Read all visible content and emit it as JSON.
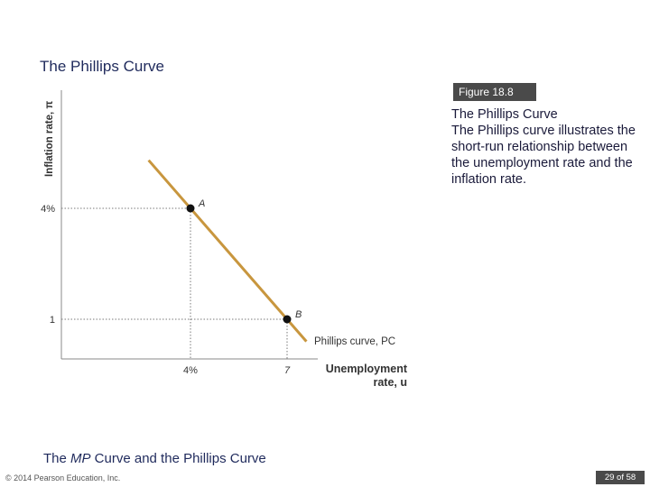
{
  "slide": {
    "title": "The Phillips Curve",
    "figure_label": "Figure 18.8",
    "caption_title": "The Phillips Curve",
    "caption_text": "The Phillips curve illustrates the short-run relationship between the unemployment rate and the inflation rate.",
    "subtitle_pre": "The ",
    "subtitle_em": "MP",
    "subtitle_post": " Curve and the Phillips Curve",
    "copyright": "© 2014 Pearson Education, Inc.",
    "page": "29 of 58"
  },
  "colors": {
    "curve": "#c8963e",
    "guide": "#7a7a7a",
    "axis": "#888888",
    "point": "#111111"
  },
  "chart_data": {
    "type": "line",
    "title": "",
    "xlabel_line1": "Unemployment",
    "xlabel_line2": "rate, u",
    "ylabel": "Inflation rate, π",
    "x_ticks": [
      "4%",
      "7"
    ],
    "y_ticks": [
      "4%",
      "1"
    ],
    "series": [
      {
        "name": "Phillips curve, PC",
        "values": [
          {
            "u": 4,
            "pi": 4
          },
          {
            "u": 7,
            "pi": 1
          }
        ]
      }
    ],
    "points": [
      {
        "label": "A",
        "u": 4,
        "pi": 4
      },
      {
        "label": "B",
        "u": 7,
        "pi": 1
      }
    ],
    "grid": false,
    "legend": "curve label at lower end"
  }
}
